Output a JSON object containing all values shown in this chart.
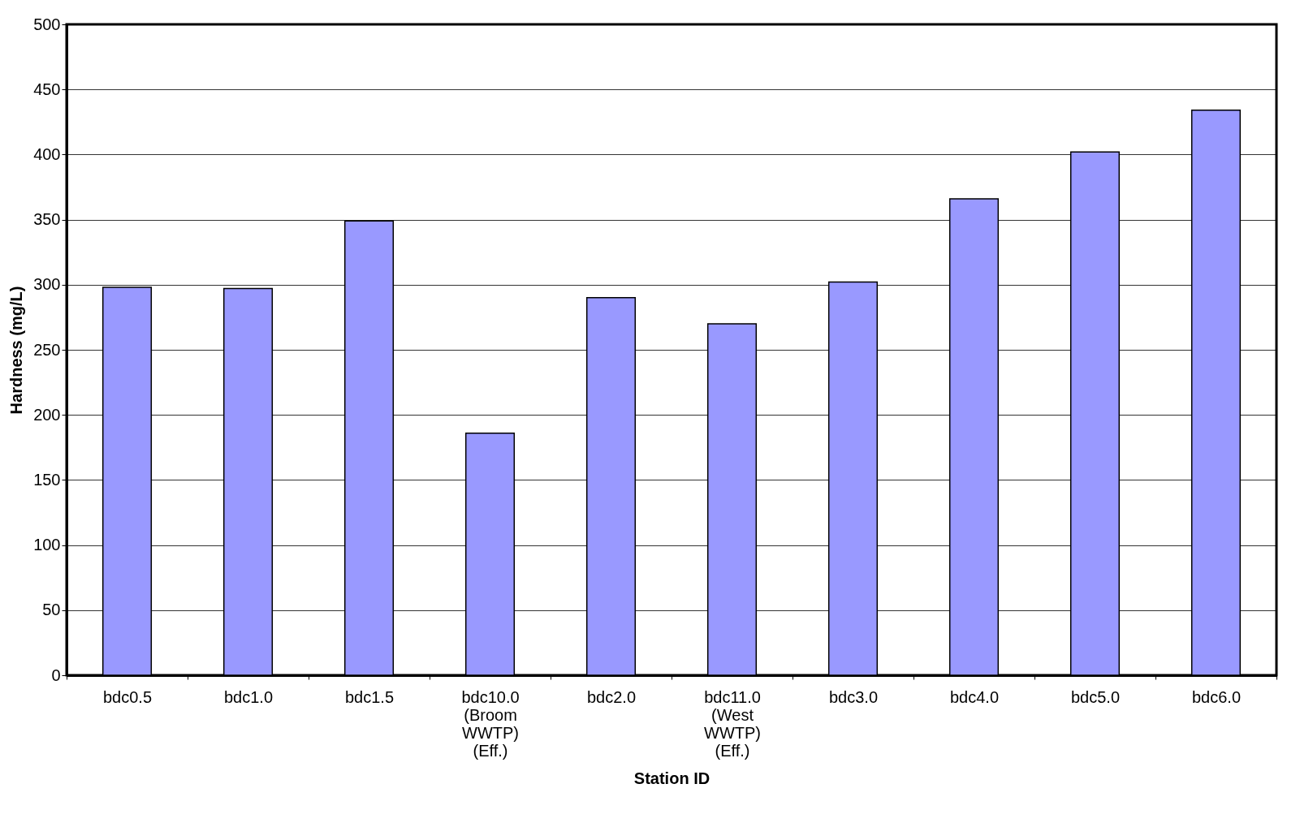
{
  "chart_data": {
    "type": "bar",
    "xlabel": "Station ID",
    "ylabel": "Hardness  (mg/L)",
    "categories": [
      "bdc0.5",
      "bdc1.0",
      "bdc1.5",
      "bdc10.0 (Broom WWTP) (Eff.)",
      "bdc2.0",
      "bdc11.0 (West WWTP) (Eff.)",
      "bdc3.0",
      "bdc4.0",
      "bdc5.0",
      "bdc6.0"
    ],
    "values": [
      298,
      297,
      349,
      186,
      290,
      270,
      302,
      366,
      402,
      434
    ],
    "color": "#9999ff",
    "ylim": [
      0,
      500
    ],
    "yticks": [
      0,
      50,
      100,
      150,
      200,
      250,
      300,
      350,
      400,
      450,
      500
    ],
    "grid": "y"
  }
}
